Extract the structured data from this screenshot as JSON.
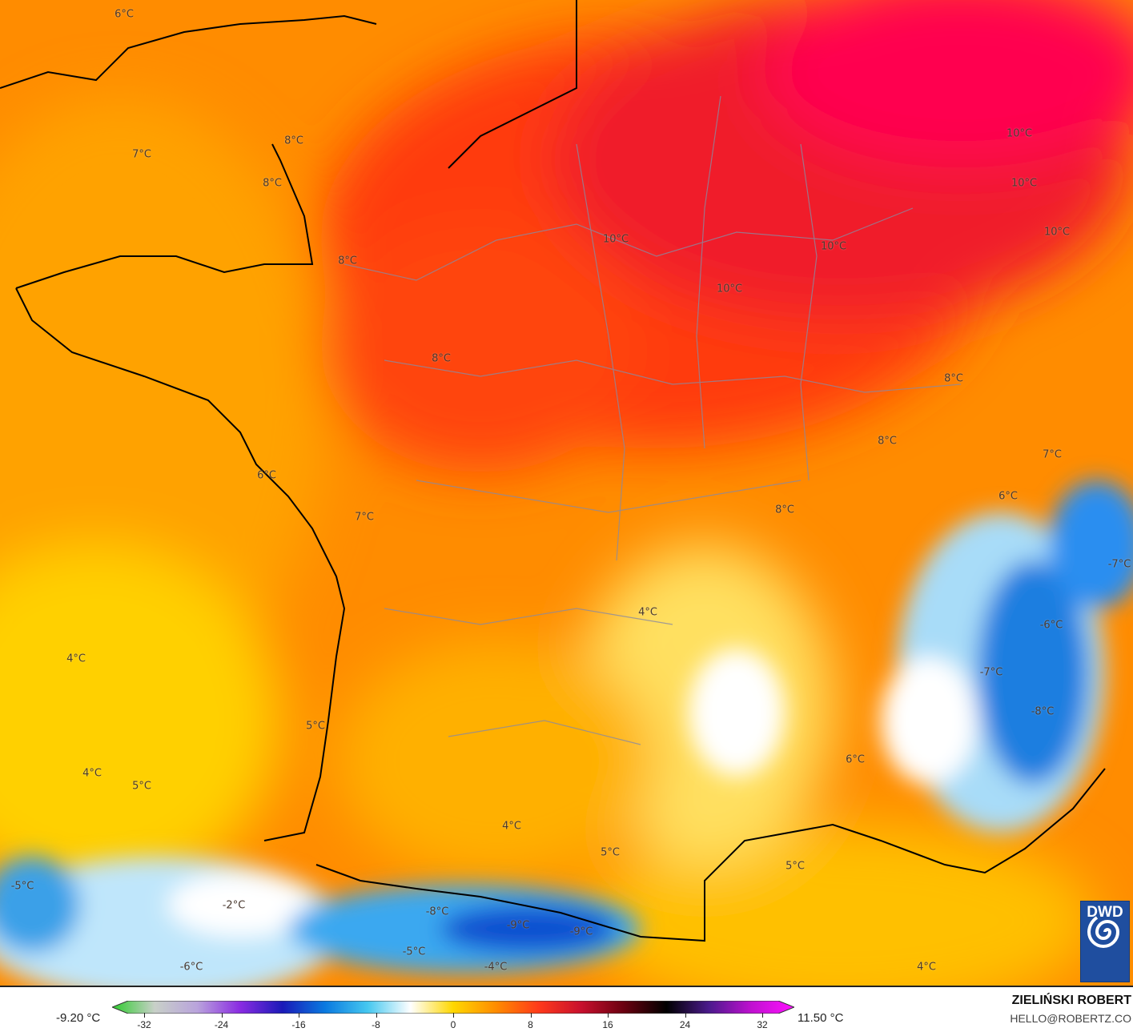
{
  "map": {
    "labels": [
      "6°C",
      "7°C",
      "8°C",
      "8°C",
      "8°C",
      "10°C",
      "10°C",
      "10°C",
      "10°C",
      "10°C",
      "10°C",
      "8°C",
      "8°C",
      "8°C",
      "7°C",
      "6°C",
      "6°C",
      "8°C",
      "7°C",
      "-7°C",
      "4°C",
      "-6°C",
      "4°C",
      "-7°C",
      "-8°C",
      "5°C",
      "6°C",
      "4°C",
      "5°C",
      "4°C",
      "5°C",
      "5°C",
      "-5°C",
      "-2°C",
      "-8°C",
      "-9°C",
      "-9°C",
      "-5°C",
      "-6°C",
      "-4°C",
      "4°C"
    ],
    "logo_text": "DWD"
  },
  "legend": {
    "min_label": "-9.20 °C",
    "max_label": "11.50 °C",
    "ticks": [
      "-32",
      "-24",
      "-16",
      "-8",
      "0",
      "8",
      "16",
      "24",
      "32"
    ],
    "colors": [
      "#2ecc2e",
      "#c8d0c8",
      "#b9a3dc",
      "#8a2be2",
      "#1a1ab8",
      "#0a7ae0",
      "#46c8f0",
      "#ffffff",
      "#ffd700",
      "#ff8c00",
      "#ff3a1a",
      "#c8102e",
      "#6a0010",
      "#000000",
      "#4b1a8c",
      "#c010d0",
      "#ff10ff"
    ]
  },
  "credits": {
    "author": "ZIELIŃSKI ROBERT",
    "email": "HELLO@ROBERTZ.CO"
  }
}
